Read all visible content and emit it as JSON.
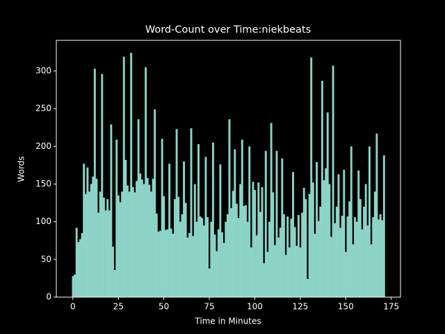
{
  "chart_data": {
    "type": "bar",
    "title": "Word-Count over Time:niekbeats",
    "xlabel": "Time in Minutes",
    "ylabel": "Words",
    "color": "#8dd3c7",
    "background": "#000000",
    "x": [
      0,
      1,
      2,
      3,
      4,
      5,
      6,
      7,
      8,
      9,
      10,
      11,
      12,
      13,
      14,
      15,
      16,
      17,
      18,
      19,
      20,
      21,
      22,
      23,
      24,
      25,
      26,
      27,
      28,
      29,
      30,
      31,
      32,
      33,
      34,
      35,
      36,
      37,
      38,
      39,
      40,
      41,
      42,
      43,
      44,
      45,
      46,
      47,
      48,
      49,
      50,
      51,
      52,
      53,
      54,
      55,
      56,
      57,
      58,
      59,
      60,
      61,
      62,
      63,
      64,
      65,
      66,
      67,
      68,
      69,
      70,
      71,
      72,
      73,
      74,
      75,
      76,
      77,
      78,
      79,
      80,
      81,
      82,
      83,
      84,
      85,
      86,
      87,
      88,
      89,
      90,
      91,
      92,
      93,
      94,
      95,
      96,
      97,
      98,
      99,
      100,
      101,
      102,
      103,
      104,
      105,
      106,
      107,
      108,
      109,
      110,
      111,
      112,
      113,
      114,
      115,
      116,
      117,
      118,
      119,
      120,
      121,
      122,
      123,
      124,
      125,
      126,
      127,
      128,
      129,
      130,
      131,
      132,
      133,
      134,
      135,
      136,
      137,
      138,
      139,
      140,
      141,
      142,
      143,
      144,
      145,
      146,
      147,
      148,
      149,
      150,
      151,
      152,
      153,
      154,
      155,
      156,
      157,
      158,
      159,
      160,
      161,
      162,
      163,
      164,
      165,
      166,
      167,
      168,
      169,
      170,
      171
    ],
    "values": [
      28,
      30,
      92,
      73,
      77,
      85,
      177,
      137,
      172,
      140,
      150,
      160,
      303,
      157,
      112,
      140,
      296,
      132,
      115,
      130,
      115,
      229,
      67,
      36,
      209,
      135,
      126,
      140,
      319,
      182,
      148,
      140,
      324,
      146,
      139,
      154,
      236,
      164,
      156,
      150,
      305,
      158,
      149,
      140,
      157,
      249,
      111,
      87,
      88,
      210,
      134,
      89,
      90,
      177,
      91,
      84,
      130,
      223,
      133,
      100,
      110,
      180,
      125,
      79,
      85,
      224,
      81,
      150,
      100,
      203,
      107,
      105,
      95,
      186,
      106,
      38,
      100,
      205,
      83,
      61,
      90,
      176,
      86,
      72,
      100,
      110,
      236,
      118,
      141,
      196,
      124,
      105,
      150,
      209,
      121,
      122,
      100,
      200,
      66,
      153,
      142,
      82,
      152,
      113,
      146,
      45,
      194,
      60,
      100,
      231,
      139,
      69,
      194,
      79,
      92,
      184,
      110,
      56,
      107,
      66,
      104,
      166,
      93,
      68,
      109,
      66,
      112,
      145,
      130,
      24,
      137,
      318,
      152,
      84,
      179,
      101,
      120,
      287,
      155,
      171,
      245,
      150,
      80,
      307,
      98,
      120,
      163,
      92,
      108,
      169,
      60,
      107,
      127,
      200,
      70,
      106,
      100,
      168,
      130,
      90,
      120,
      150,
      95,
      200,
      70,
      106,
      140,
      217,
      103,
      110,
      102,
      188
    ],
    "xlim": [
      -9.1,
      180.1
    ],
    "xticks": [
      0,
      25,
      50,
      75,
      100,
      125,
      150,
      175
    ],
    "ylim": [
      0,
      340.6
    ],
    "yticks": [
      0,
      50,
      100,
      150,
      200,
      250,
      300
    ]
  }
}
